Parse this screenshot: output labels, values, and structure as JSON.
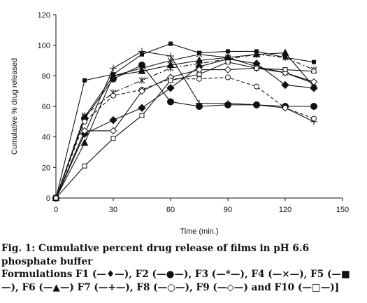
{
  "chart_data": {
    "type": "line",
    "xlabel": "Time (min.)",
    "ylabel": "Cumulative % drug released",
    "xlim": [
      0,
      150
    ],
    "ylim": [
      0,
      120
    ],
    "xticks": [
      0,
      30,
      60,
      90,
      120,
      150
    ],
    "yticks": [
      0,
      20,
      40,
      60,
      80,
      100,
      120
    ],
    "grid": false,
    "x": [
      0,
      15,
      30,
      45,
      60,
      75,
      90,
      105,
      120,
      135
    ],
    "series": [
      {
        "name": "F1",
        "marker": "diamond-filled",
        "dash": "solid",
        "values": [
          0,
          42,
          51,
          59,
          72,
          86,
          91,
          88,
          74,
          72
        ]
      },
      {
        "name": "F2",
        "marker": "circle-filled",
        "dash": "solid",
        "values": [
          0,
          52,
          78,
          87,
          63,
          60,
          61,
          61,
          60,
          60
        ]
      },
      {
        "name": "F3",
        "marker": "star",
        "dash": "dashdot",
        "values": [
          0,
          54,
          69,
          77,
          85,
          88,
          91,
          94,
          92,
          84
        ]
      },
      {
        "name": "F4",
        "marker": "x",
        "dash": "solid",
        "values": [
          0,
          53,
          80,
          85,
          90,
          94,
          92,
          86,
          82,
          75
        ]
      },
      {
        "name": "F5",
        "marker": "square-filled",
        "dash": "solid",
        "values": [
          0,
          77,
          81,
          94,
          101,
          95,
          96,
          96,
          92,
          89
        ]
      },
      {
        "name": "F6",
        "marker": "triangle-filled",
        "dash": "solid",
        "values": [
          0,
          36,
          80,
          83,
          87,
          90,
          92,
          94,
          95,
          73
        ]
      },
      {
        "name": "F7",
        "marker": "plus",
        "dash": "solid",
        "values": [
          0,
          42,
          85,
          96,
          93,
          62,
          62,
          61,
          59,
          50
        ]
      },
      {
        "name": "F8",
        "marker": "circle-open",
        "dash": "dashed",
        "values": [
          0,
          50,
          67,
          71,
          78,
          78,
          79,
          73,
          59,
          52
        ]
      },
      {
        "name": "F9",
        "marker": "diamond-open",
        "dash": "solid",
        "values": [
          0,
          44,
          44,
          70,
          79,
          84,
          84,
          85,
          82,
          76
        ]
      },
      {
        "name": "F10",
        "marker": "square-open",
        "dash": "solid",
        "values": [
          0,
          21,
          39,
          54,
          77,
          81,
          89,
          85,
          84,
          83
        ]
      }
    ]
  },
  "caption": {
    "title": "Fig. 1: Cumulative percent drug release of films in pH 6.6 phosphate buffer",
    "formulations": "Formulations F1 (—♦—), F2 (—●—), F3 (—*—), F4 (—×—), F5 (—■—), F6 (—▲—) F7 (—+—), F8 (—○—), F9 (—◇—) and F10 (—□—)]"
  },
  "colors": {
    "ink": "#111111",
    "background": "#ffffff"
  }
}
